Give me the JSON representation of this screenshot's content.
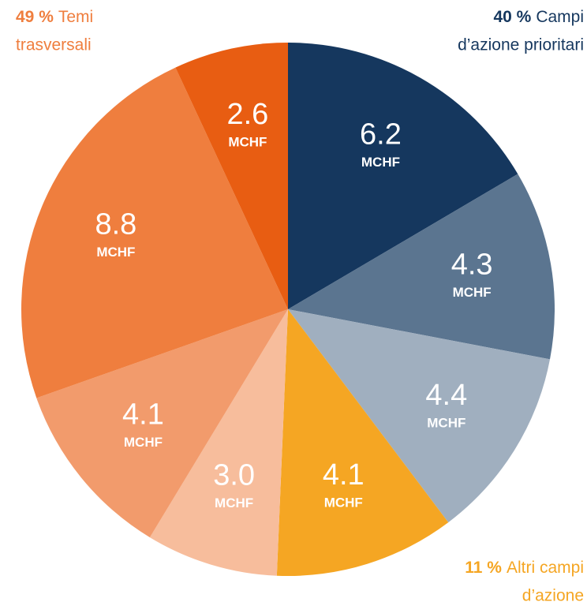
{
  "chart_data": {
    "type": "pie",
    "unit": "MCHF",
    "categories": [
      null,
      null,
      null,
      null,
      null,
      null,
      null,
      null
    ],
    "values": [
      6.2,
      4.3,
      4.4,
      4.1,
      3.0,
      4.1,
      8.8,
      2.6
    ],
    "value_labels": [
      "6.2",
      "4.3",
      "4.4",
      "4.1",
      "3.0",
      "4.1",
      "8.8",
      "2.6"
    ],
    "colors": [
      "#15375e",
      "#5b7590",
      "#a0afbf",
      "#f5a623",
      "#f7bd9c",
      "#f29b6c",
      "#ef7e3e",
      "#e85d12"
    ],
    "groups": [
      {
        "share": 40,
        "share_label": "40 %",
        "name_lines": [
          "Campi",
          "d’azione prioritari"
        ],
        "color": "#15375e"
      },
      {
        "share": 11,
        "share_label": "11 %",
        "name_lines": [
          "Altri campi",
          "d’azione"
        ],
        "color": "#f5a623"
      },
      {
        "share": 49,
        "share_label": "49 %",
        "name_lines": [
          "Temi",
          "trasversali"
        ],
        "color": "#ef7e3e"
      }
    ]
  }
}
